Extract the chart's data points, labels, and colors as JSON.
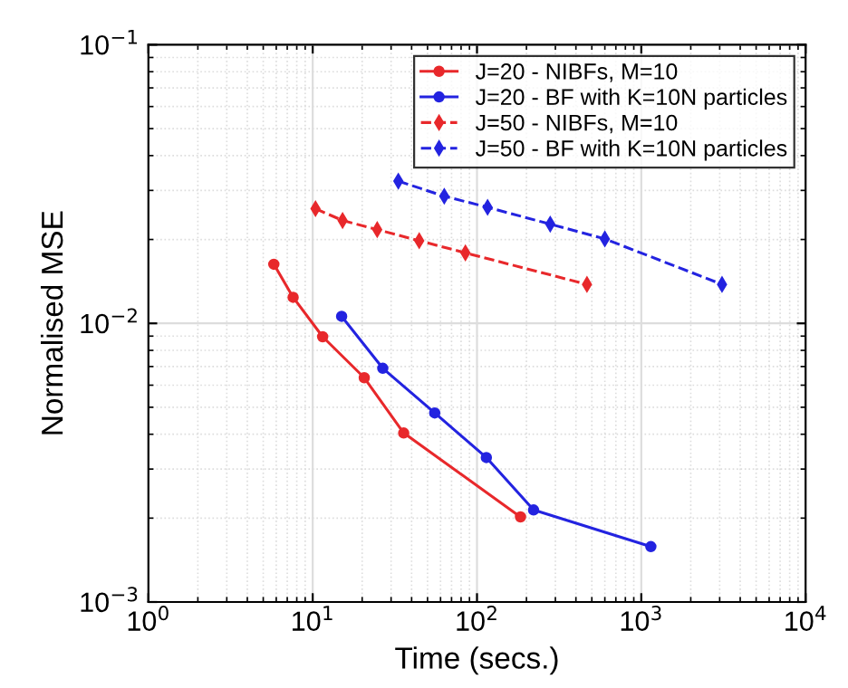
{
  "chart_data": {
    "type": "line",
    "xlabel": "Time (secs.)",
    "ylabel": "Normalised MSE",
    "log": "xy",
    "grid": true,
    "legend": "top right",
    "xlim": [
      1,
      10000
    ],
    "ylim": [
      0.001,
      0.1
    ],
    "xticks": [
      {
        "value": 1,
        "label": "10$^{0}$"
      },
      {
        "value": 10,
        "label": "10$^{1}$"
      },
      {
        "value": 100,
        "label": "10$^{2}$"
      },
      {
        "value": 1000,
        "label": "10$^{3}$"
      },
      {
        "value": 10000,
        "label": "10$^{4}$"
      }
    ],
    "yticks": [
      {
        "value": 0.001,
        "label": "10$^{−3}$"
      },
      {
        "value": 0.01,
        "label": "10$^{−2}$"
      },
      {
        "value": 0.1,
        "label": "10$^{−1}$"
      }
    ],
    "series": [
      {
        "name": "J=20 - NIBFs, M=10",
        "color": "#e8282b",
        "line_style": "solid",
        "marker": "circle",
        "x": [
          5.8,
          7.6,
          11.5,
          20.6,
          35.8,
          184
        ],
        "values": [
          0.0163,
          0.0124,
          0.00895,
          0.00638,
          0.00404,
          0.00202
        ]
      },
      {
        "name": "J=20 - BF with K=10N particles",
        "color": "#2323e0",
        "line_style": "solid",
        "marker": "circle",
        "x": [
          15.0,
          26.7,
          55.3,
          114,
          221,
          1143
        ],
        "values": [
          0.0106,
          0.0069,
          0.00477,
          0.0033,
          0.00214,
          0.00158
        ]
      },
      {
        "name": "J=50 - NIBFs, M=10",
        "color": "#e8282b",
        "line_style": "dashed",
        "marker": "diamond",
        "x": [
          10.4,
          15.2,
          24.7,
          44.5,
          85,
          467
        ],
        "values": [
          0.0258,
          0.0234,
          0.0217,
          0.0198,
          0.0179,
          0.0138
        ]
      },
      {
        "name": "J=50 - BF with K=10N particles",
        "color": "#2323e0",
        "line_style": "dashed",
        "marker": "diamond",
        "x": [
          33.2,
          63.2,
          116,
          279,
          600,
          3100
        ],
        "values": [
          0.0324,
          0.0286,
          0.0261,
          0.0227,
          0.0201,
          0.0138
        ]
      }
    ]
  }
}
